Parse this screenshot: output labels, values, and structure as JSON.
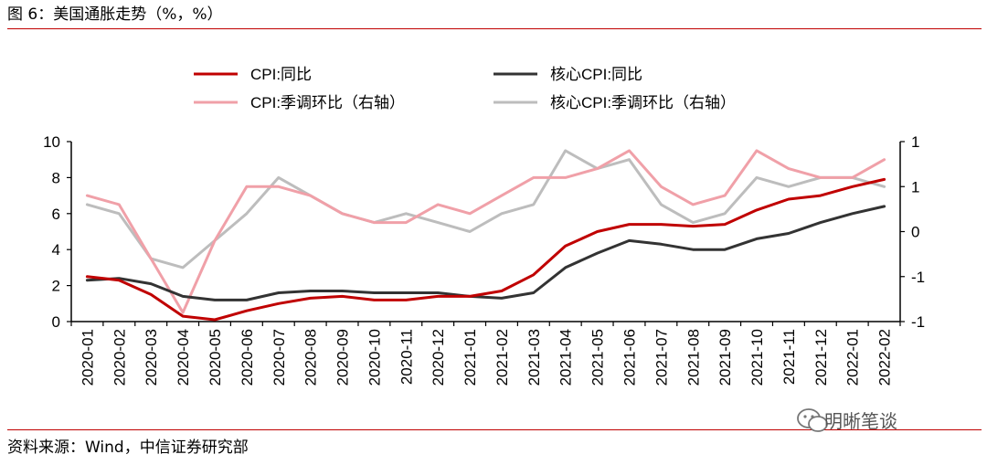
{
  "title": "图 6：美国通胀走势（%，%）",
  "source": "资料来源：Wind，中信证券研究部",
  "watermark": "明晰笔谈",
  "chart_data": {
    "type": "line",
    "categories": [
      "2020-01",
      "2020-02",
      "2020-03",
      "2020-04",
      "2020-05",
      "2020-06",
      "2020-07",
      "2020-08",
      "2020-09",
      "2020-10",
      "2020-11",
      "2020-12",
      "2021-01",
      "2021-02",
      "2021-03",
      "2021-04",
      "2021-05",
      "2021-06",
      "2021-07",
      "2021-08",
      "2021-09",
      "2021-10",
      "2021-11",
      "2021-12",
      "2022-01",
      "2022-02"
    ],
    "left_axis": {
      "ylim": [
        0,
        10
      ],
      "ticks": [
        "0",
        "2",
        "4",
        "6",
        "8",
        "10"
      ]
    },
    "right_axis": {
      "ylim": [
        -1,
        1
      ],
      "ticks": [
        "-1",
        "-1",
        "0",
        "1",
        "1"
      ],
      "tick_values": [
        -1,
        -0.5,
        0,
        0.5,
        1
      ]
    },
    "series": [
      {
        "name": "CPI:同比",
        "axis": "left",
        "color": "#c00000",
        "width": 3,
        "values": [
          2.5,
          2.3,
          1.5,
          0.3,
          0.1,
          0.6,
          1.0,
          1.3,
          1.4,
          1.2,
          1.2,
          1.4,
          1.4,
          1.7,
          2.6,
          4.2,
          5.0,
          5.4,
          5.4,
          5.3,
          5.4,
          6.2,
          6.8,
          7.0,
          7.5,
          7.9
        ]
      },
      {
        "name": "核心CPI:同比",
        "axis": "left",
        "color": "#333333",
        "width": 3,
        "values": [
          2.3,
          2.4,
          2.1,
          1.4,
          1.2,
          1.2,
          1.6,
          1.7,
          1.7,
          1.6,
          1.6,
          1.6,
          1.4,
          1.3,
          1.6,
          3.0,
          3.8,
          4.5,
          4.3,
          4.0,
          4.0,
          4.6,
          4.9,
          5.5,
          6.0,
          6.4
        ]
      },
      {
        "name": "CPI:季调环比（右轴）",
        "axis": "right",
        "color": "#f0a0a8",
        "width": 3,
        "values": [
          0.4,
          0.3,
          -0.3,
          -0.9,
          -0.1,
          0.5,
          0.5,
          0.4,
          0.2,
          0.1,
          0.1,
          0.3,
          0.2,
          0.4,
          0.6,
          0.6,
          0.7,
          0.9,
          0.5,
          0.3,
          0.4,
          0.9,
          0.7,
          0.6,
          0.6,
          0.8
        ]
      },
      {
        "name": "核心CPI:季调环比（右轴）",
        "axis": "right",
        "color": "#bdbdbd",
        "width": 3,
        "values": [
          0.3,
          0.2,
          -0.3,
          -0.4,
          -0.1,
          0.2,
          0.6,
          0.4,
          0.2,
          0.1,
          0.2,
          0.1,
          0.0,
          0.2,
          0.3,
          0.9,
          0.7,
          0.8,
          0.3,
          0.1,
          0.2,
          0.6,
          0.5,
          0.6,
          0.6,
          0.5
        ]
      }
    ],
    "legend_position": "top",
    "grid": false
  }
}
